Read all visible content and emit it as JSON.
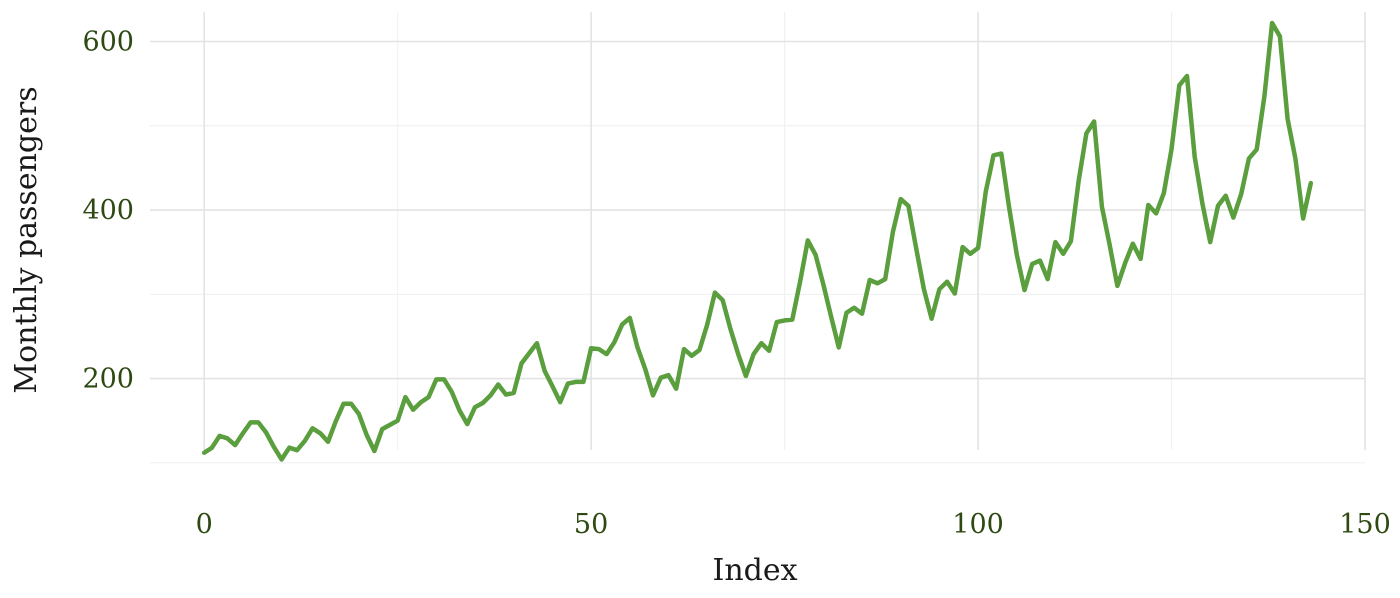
{
  "chart_data": {
    "type": "line",
    "title": "",
    "xlabel": "Index",
    "ylabel": "Monthly passengers",
    "xlim": [
      -7,
      150
    ],
    "ylim": [
      82,
      635
    ],
    "x_ticks": [
      0,
      50,
      100,
      150
    ],
    "y_ticks": [
      200,
      400,
      600
    ],
    "x_minor_ticks": [
      25,
      75,
      125
    ],
    "y_minor_ticks": [
      100,
      300,
      500
    ],
    "grid": true,
    "legend": "none",
    "line_color": "#5a9e3e",
    "tick_color": "#2e4a12",
    "series": [
      {
        "x": [
          0,
          1,
          2,
          3,
          4,
          5,
          6,
          7,
          8,
          9,
          10,
          11,
          12,
          13,
          14,
          15,
          16,
          17,
          18,
          19,
          20,
          21,
          22,
          23,
          24,
          25,
          26,
          27,
          28,
          29,
          30,
          31,
          32,
          33,
          34,
          35,
          36,
          37,
          38,
          39,
          40,
          41,
          42,
          43,
          44,
          45,
          46,
          47,
          48,
          49,
          50,
          51,
          52,
          53,
          54,
          55,
          56,
          57,
          58,
          59,
          60,
          61,
          62,
          63,
          64,
          65,
          66,
          67,
          68,
          69,
          70,
          71,
          72,
          73,
          74,
          75,
          76,
          77,
          78,
          79,
          80,
          81,
          82,
          83,
          84,
          85,
          86,
          87,
          88,
          89,
          90,
          91,
          92,
          93,
          94,
          95,
          96,
          97,
          98,
          99,
          100,
          101,
          102,
          103,
          104,
          105,
          106,
          107,
          108,
          109,
          110,
          111,
          112,
          113,
          114,
          115,
          116,
          117,
          118,
          119,
          120,
          121,
          122,
          123,
          124,
          125,
          126,
          127,
          128,
          129,
          130,
          131,
          132,
          133,
          134,
          135,
          136,
          137,
          138,
          139,
          140,
          141,
          142,
          143
        ],
        "values": [
          112,
          118,
          132,
          129,
          121,
          135,
          148,
          148,
          136,
          119,
          104,
          118,
          115,
          126,
          141,
          135,
          125,
          149,
          170,
          170,
          158,
          133,
          114,
          140,
          145,
          150,
          178,
          163,
          172,
          178,
          199,
          199,
          184,
          162,
          146,
          166,
          171,
          180,
          193,
          181,
          183,
          218,
          230,
          242,
          209,
          191,
          172,
          194,
          196,
          196,
          236,
          235,
          229,
          243,
          264,
          272,
          237,
          211,
          180,
          201,
          204,
          188,
          235,
          227,
          234,
          264,
          302,
          293,
          259,
          229,
          203,
          229,
          242,
          233,
          267,
          269,
          270,
          315,
          364,
          347,
          312,
          274,
          237,
          278,
          284,
          277,
          317,
          313,
          318,
          374,
          413,
          405,
          355,
          306,
          271,
          306,
          315,
          301,
          356,
          348,
          355,
          422,
          465,
          467,
          404,
          347,
          305,
          336,
          340,
          318,
          362,
          348,
          363,
          435,
          491,
          505,
          404,
          359,
          310,
          337,
          360,
          342,
          406,
          396,
          420,
          472,
          548,
          559,
          463,
          407,
          362,
          405,
          417,
          391,
          419,
          461,
          472,
          535,
          622,
          606,
          508,
          461,
          390,
          432
        ]
      }
    ]
  }
}
